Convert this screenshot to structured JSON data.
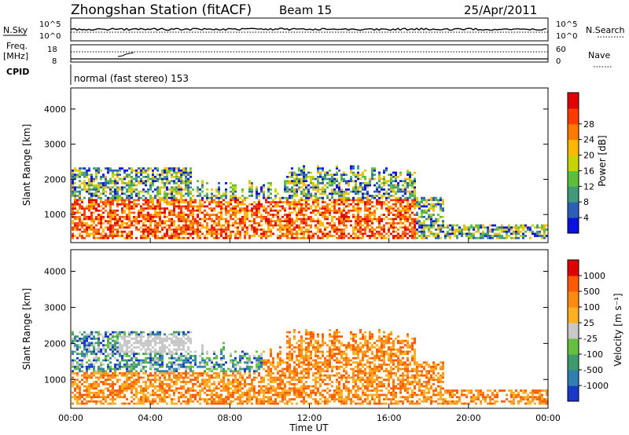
{
  "header": {
    "title": "Zhongshan Station (fitACF)",
    "beam": "Beam 15",
    "date": "25/Apr/2011"
  },
  "top_panels": {
    "nsky_label": "N.Sky",
    "nsky_ticks": [
      "10^5",
      "10^0"
    ],
    "nsearch_label": "N.Search",
    "nsearch_ticks": [
      "10^5",
      "10^0"
    ],
    "freq_label": "Freq.",
    "freq_unit": "[MHz]",
    "freq_ticks": [
      "18",
      "8"
    ],
    "nave_label": "Nave",
    "nave_ticks": [
      "60",
      "0"
    ],
    "cpid_label": "CPID",
    "cpid_value": "normal (fast stereo) 153"
  },
  "chart_data": [
    {
      "type": "heatmap",
      "panel": "power",
      "ylabel": "Slant Range [km]",
      "yticks": [
        "1000",
        "2000",
        "3000",
        "4000"
      ],
      "ylim": [
        200,
        4600
      ],
      "colorbar_label": "Power [dB]",
      "colorbar_ticks": [
        "4",
        "8",
        "12",
        "16",
        "20",
        "24",
        "28"
      ],
      "colors": [
        "#0a10e0",
        "#2b5fb8",
        "#3f9b7a",
        "#5cbf3c",
        "#c8d400",
        "#ffb800",
        "#ff7800",
        "#ff3c00",
        "#e00000"
      ]
    },
    {
      "type": "heatmap",
      "panel": "velocity",
      "ylabel": "Slant Range [km]",
      "yticks": [
        "1000",
        "2000",
        "3000",
        "4000"
      ],
      "ylim": [
        200,
        4600
      ],
      "colorbar_label": "Velocity [m s⁻¹]",
      "colorbar_ticks": [
        "1000",
        "500",
        "100",
        "25",
        "-25",
        "-100",
        "-500",
        "-1000"
      ],
      "colors": [
        "#1838c8",
        "#2f7fb0",
        "#3f9b6e",
        "#66c040",
        "#c8c8c8",
        "#ffb020",
        "#ff8a10",
        "#ff5a00",
        "#e00000"
      ]
    }
  ],
  "xaxis": {
    "label": "Time UT",
    "ticks": [
      "00:00",
      "04:00",
      "08:00",
      "12:00",
      "16:00",
      "20:00",
      "00:00"
    ]
  }
}
